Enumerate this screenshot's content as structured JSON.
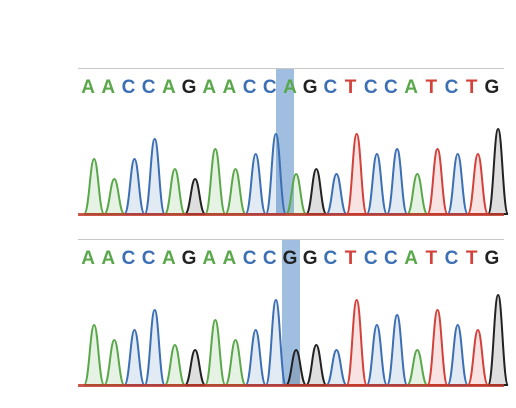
{
  "colors": {
    "A": "#5aa84b",
    "C": "#3c6fb4",
    "G": "#222222",
    "T": "#d2423b",
    "highlight": "#8fb3da"
  },
  "panels": [
    {
      "id": "panel-a",
      "bases": "AACCAGAACCAGCTCCATCTG",
      "highlight_index": 10,
      "peaks": [
        "A",
        "A",
        "C",
        "C",
        "A",
        "G",
        "A",
        "A",
        "C",
        "C",
        "A",
        "G",
        "C",
        "T",
        "C",
        "C",
        "A",
        "T",
        "C",
        "T",
        "G"
      ],
      "heights": [
        0.55,
        0.35,
        0.55,
        0.75,
        0.45,
        0.35,
        0.65,
        0.45,
        0.6,
        0.8,
        0.4,
        0.45,
        0.4,
        0.8,
        0.6,
        0.65,
        0.4,
        0.65,
        0.6,
        0.6,
        0.85
      ]
    },
    {
      "id": "panel-b",
      "bases": "AACCAGAACCGGCTCCATCTG",
      "highlight_index": 10,
      "peaks": [
        "A",
        "A",
        "C",
        "C",
        "A",
        "G",
        "A",
        "A",
        "C",
        "C",
        "G",
        "G",
        "C",
        "T",
        "C",
        "C",
        "A",
        "T",
        "C",
        "T",
        "G"
      ],
      "heights": [
        0.6,
        0.45,
        0.55,
        0.75,
        0.4,
        0.35,
        0.65,
        0.45,
        0.55,
        0.85,
        0.35,
        0.4,
        0.35,
        0.85,
        0.6,
        0.7,
        0.35,
        0.75,
        0.6,
        0.55,
        0.9
      ]
    }
  ]
}
